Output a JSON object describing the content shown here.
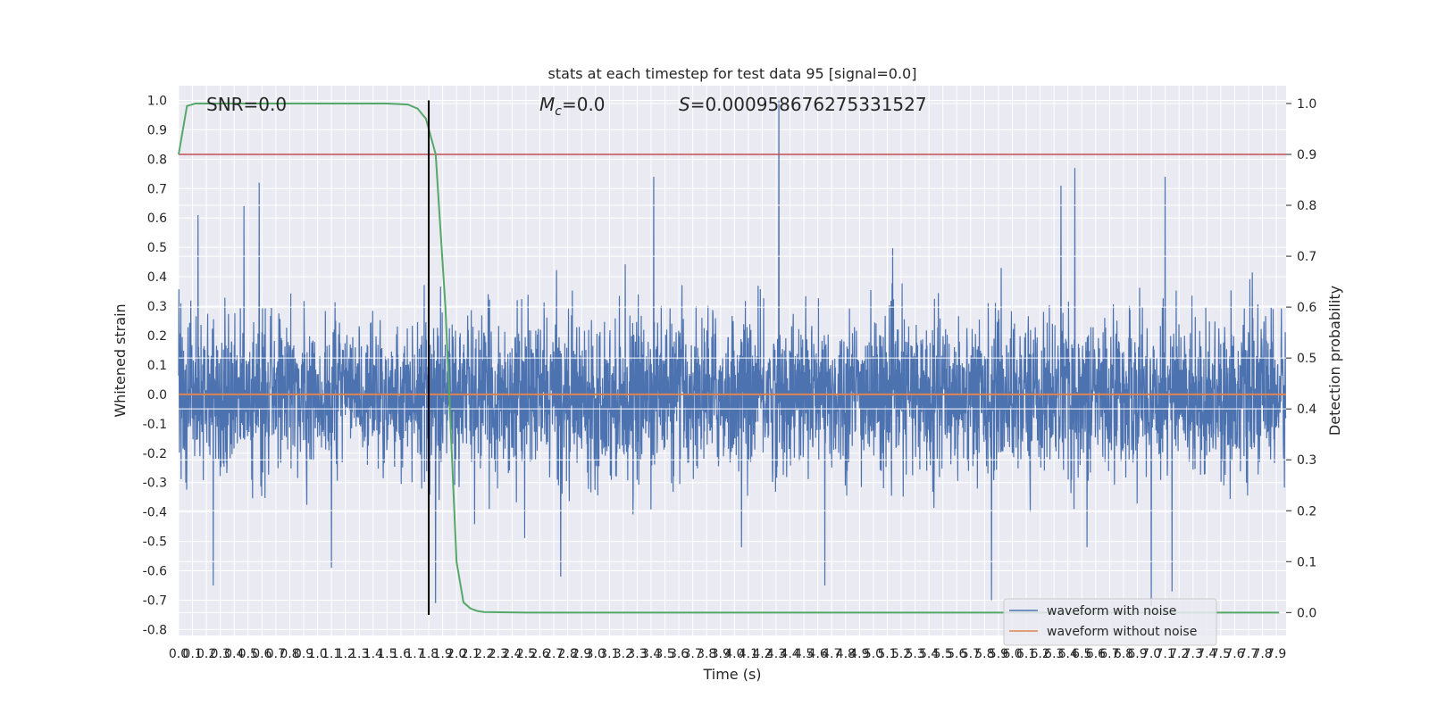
{
  "chart_data": {
    "type": "line",
    "title": "stats at each timestep for test data 95 [signal=0.0]",
    "xlabel": "Time (s)",
    "ylabel_left": "Whitened strain",
    "ylabel_right": "Detection probability",
    "xlim": [
      0.0,
      7.97
    ],
    "ylim_left": [
      -0.82,
      1.05
    ],
    "ylim_right": [
      -0.045,
      1.035
    ],
    "x_ticks": [
      "0.0",
      "0.1",
      "0.2",
      "0.3",
      "0.4",
      "0.5",
      "0.6",
      "0.7",
      "0.8",
      "0.9",
      "1.0",
      "1.1",
      "1.2",
      "1.3",
      "1.4",
      "1.5",
      "1.6",
      "1.7",
      "1.8",
      "1.9",
      "2.0",
      "2.1",
      "2.2",
      "2.3",
      "2.4",
      "2.5",
      "2.6",
      "2.7",
      "2.8",
      "2.9",
      "3.0",
      "3.1",
      "3.2",
      "3.3",
      "3.4",
      "3.5",
      "3.6",
      "3.7",
      "3.8",
      "3.9",
      "4.0",
      "4.1",
      "4.2",
      "4.3",
      "4.4",
      "4.5",
      "4.6",
      "4.7",
      "4.8",
      "4.9",
      "5.0",
      "5.1",
      "5.2",
      "5.3",
      "5.4",
      "5.5",
      "5.6",
      "5.7",
      "5.8",
      "5.9",
      "6.0",
      "6.1",
      "6.2",
      "6.3",
      "6.4",
      "6.5",
      "6.6",
      "6.7",
      "6.8",
      "6.9",
      "7.0",
      "7.1",
      "7.2",
      "7.3",
      "7.4",
      "7.5",
      "7.6",
      "7.7",
      "7.8",
      "7.9"
    ],
    "y_ticks_left": [
      "-0.8",
      "-0.7",
      "-0.6",
      "-0.5",
      "-0.4",
      "-0.3",
      "-0.2",
      "-0.1",
      "0.0",
      "0.1",
      "0.2",
      "0.3",
      "0.4",
      "0.5",
      "0.6",
      "0.7",
      "0.8",
      "0.9",
      "1.0"
    ],
    "y_ticks_right": [
      "0.0",
      "0.1",
      "0.2",
      "0.3",
      "0.4",
      "0.5",
      "0.6",
      "0.7",
      "0.8",
      "0.9",
      "1.0"
    ],
    "grid": true,
    "legend": "lower-right",
    "annotations": {
      "snr": "SNR=0.0",
      "mc_symbol": "M",
      "mc_sub": "c",
      "mc_value": "=0.0",
      "s_symbol": "S",
      "s_value": "=0.000958676275331527"
    },
    "series": [
      {
        "name": "waveform with noise",
        "axis": "left",
        "color": "#4c72b0",
        "kind": "noise",
        "envelope_upper": 0.45,
        "envelope_lower": -0.42,
        "peaks": [
          {
            "x": 0.14,
            "y": 0.61
          },
          {
            "x": 0.25,
            "y": -0.65
          },
          {
            "x": 0.47,
            "y": 0.64
          },
          {
            "x": 0.58,
            "y": 0.72
          },
          {
            "x": 1.1,
            "y": -0.59
          },
          {
            "x": 1.85,
            "y": -0.71
          },
          {
            "x": 2.75,
            "y": -0.62
          },
          {
            "x": 3.42,
            "y": 0.74
          },
          {
            "x": 4.32,
            "y": 1.0
          },
          {
            "x": 4.65,
            "y": -0.65
          },
          {
            "x": 5.85,
            "y": -0.7
          },
          {
            "x": 6.35,
            "y": 0.71
          },
          {
            "x": 6.45,
            "y": 0.77
          },
          {
            "x": 7.0,
            "y": -0.72
          },
          {
            "x": 7.1,
            "y": 0.74
          },
          {
            "x": 7.15,
            "y": -0.67
          }
        ]
      },
      {
        "name": "waveform without noise",
        "axis": "left",
        "color": "#dd8452",
        "x": [
          0.0,
          7.97
        ],
        "y": [
          0.0,
          0.0
        ]
      },
      {
        "name": "detection probability",
        "axis": "right",
        "color": "#55a868",
        "x": [
          0.0,
          0.06,
          0.12,
          0.3,
          0.6,
          1.2,
          1.5,
          1.65,
          1.72,
          1.78,
          1.85,
          1.92,
          2.0,
          2.05,
          2.1,
          2.15,
          2.2,
          2.5,
          3.0,
          4.0,
          5.0,
          6.0,
          7.0,
          7.92
        ],
        "y": [
          0.9,
          0.995,
          1.0,
          1.0,
          1.0,
          1.0,
          1.0,
          0.998,
          0.99,
          0.97,
          0.9,
          0.6,
          0.1,
          0.02,
          0.008,
          0.003,
          0.001,
          0.0,
          0.0,
          0.0,
          0.0,
          0.0,
          0.0,
          0.0
        ]
      }
    ],
    "threshold": {
      "axis": "right",
      "value": 0.9,
      "color": "#c44e52"
    },
    "marker": {
      "x": 1.8,
      "y_from": -0.75,
      "y_to": 1.0,
      "color": "#000000"
    }
  }
}
